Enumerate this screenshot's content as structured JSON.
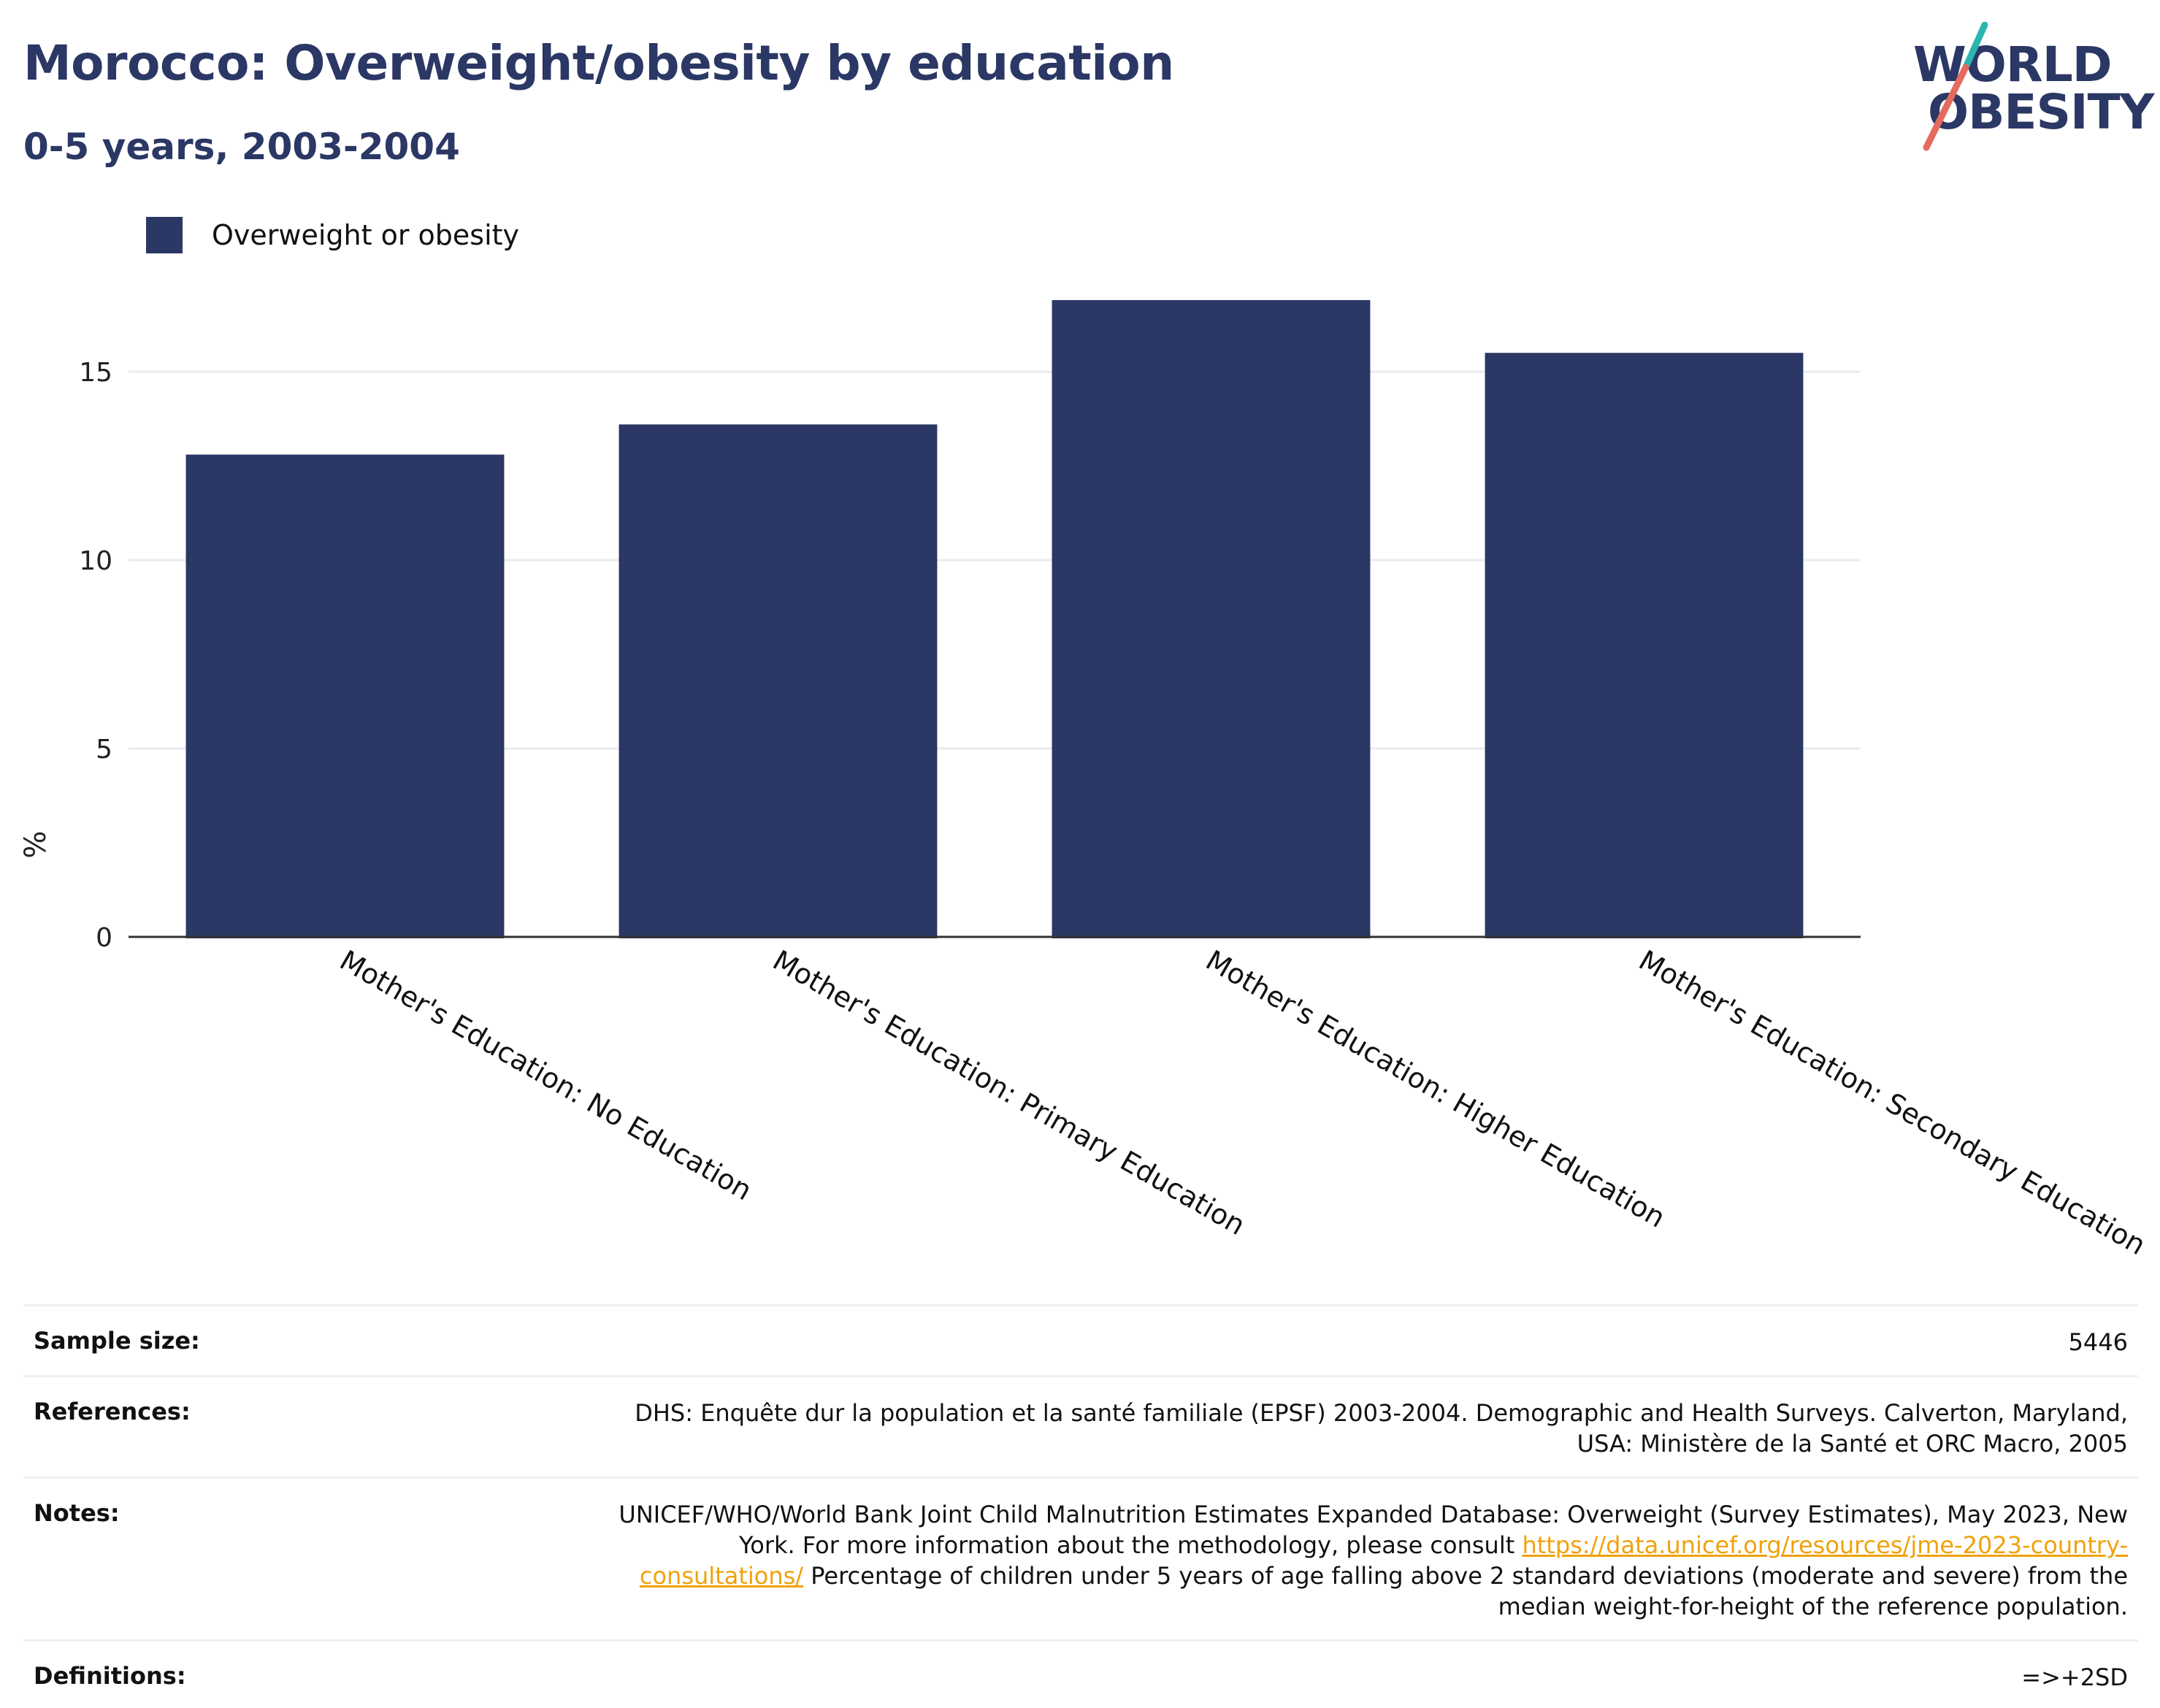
{
  "header": {
    "title": "Morocco: Overweight/obesity by education",
    "subtitle": "0-5 years, 2003-2004"
  },
  "logo": {
    "line1": "WORLD",
    "line2": "OBESITY",
    "teal_color": "#2cb5b0",
    "coral_color": "#e46b5e"
  },
  "colors": {
    "bar": "#2b3764",
    "grid": "#e8ebf1",
    "axis": "#333333"
  },
  "chart_data": {
    "type": "bar",
    "categories": [
      "Mother's Education: No Education",
      "Mother's Education: Primary Education",
      "Mother's Education: Higher Education",
      "Mother's Education: Secondary Education"
    ],
    "series": [
      {
        "name": "Overweight or obesity",
        "values": [
          12.8,
          13.6,
          16.9,
          15.5
        ]
      }
    ],
    "ylabel": "%",
    "yticks": [
      0,
      5,
      10,
      15
    ],
    "ylim": [
      0,
      17.5
    ],
    "grid": true,
    "legend_position": "top-left"
  },
  "meta": {
    "sample_size_label": "Sample size:",
    "sample_size_value": "5446",
    "references_label": "References:",
    "references_value": "DHS: Enquête dur la population et la santé familiale (EPSF) 2003-2004. Demographic and Health Surveys. Calverton, Maryland, USA: Ministère de la Santé et ORC Macro, 2005",
    "notes_label": "Notes:",
    "notes_text_before": "UNICEF/WHO/World Bank Joint Child Malnutrition Estimates Expanded Database: Overweight (Survey Estimates), May 2023, New York. For more information about the methodology, please consult ",
    "notes_link": "https://data.unicef.org/resources/jme-2023-country-consultations/",
    "notes_text_after": " Percentage of children under 5 years of age falling above 2 standard deviations (moderate and severe) from the median weight-for-height of the reference population.",
    "definitions_label": "Definitions:",
    "definitions_value": "=>+2SD"
  }
}
